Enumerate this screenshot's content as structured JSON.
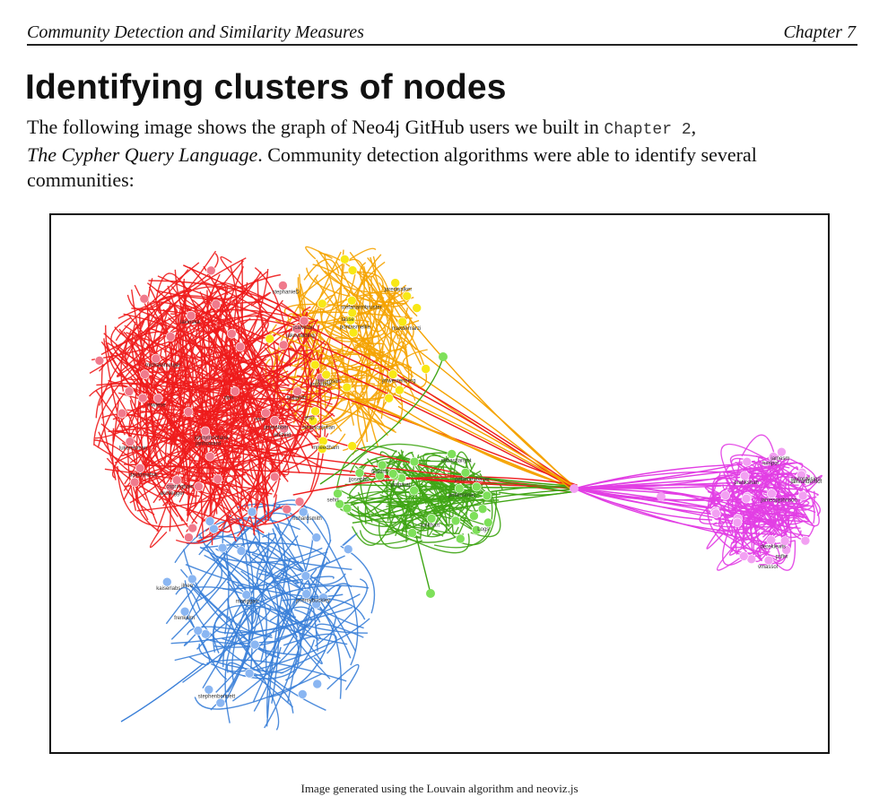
{
  "header": {
    "left": "Community Detection and Similarity Measures",
    "right": "Chapter 7"
  },
  "section": {
    "title": "Identifying clusters of nodes"
  },
  "paragraph": {
    "text_1": "The following image shows the graph of Neo4j GitHub users we built in ",
    "code_ref": "Chapter 2",
    "text_2": ",",
    "book_title": "The Cypher Query Language",
    "text_3": ". Community detection algorithms were able to identify several communities:"
  },
  "figure": {
    "caption": "Image generated using the Louvain algorithm and neoviz.js",
    "colors": {
      "red": "#ee1c1c",
      "orange": "#f5a300",
      "yellow": "#f8e816",
      "green": "#3fa514",
      "blue": "#3a7fd8",
      "magenta": "#e23ee4",
      "pink_node": "#f07a8c",
      "lightblue_node": "#8ab6f2",
      "lightgreen_node": "#7ee05a",
      "lightmagenta_node": "#f2a0f2"
    },
    "labels": {
      "red": [
        "rene",
        "janhoward",
        "lukeredman",
        "jingstone",
        "johnymontana",
        "jimwebber",
        "stephanieD",
        "davidmafsik",
        "whizkid",
        "jcalvinan",
        "lavinska",
        "rbm",
        "jakewalding",
        "twilightfr",
        "mwiese",
        "michaelhunger",
        "akollegger",
        "cspringhain"
      ],
      "orange": [
        "pontusmelke",
        "mneedham",
        "jexp",
        "nlmorrison",
        "maxdemarzi",
        "simpsonjulian",
        "jmwestenberg",
        "lasse",
        "jaredwalker",
        "stefanarmbruster"
      ],
      "green": [
        "Logs",
        "jangaraj",
        "fkakins",
        "sehrt",
        "lockhart",
        "jenkinsmac",
        "sebastianyot",
        "peterneubauer",
        "jjosephs"
      ],
      "blue": [
        "richardsmith",
        "jeremybuckley",
        "kaiserlabs",
        "stephenbennett",
        "moriggan",
        "jlneo",
        "frenkelm"
      ],
      "magenta": [
        "psfiw",
        "vmassol",
        "jamesm",
        "taylordesign",
        "pratikshah",
        "dereklewis",
        "lumpol",
        "jamespjohnson",
        "janvanderhof"
      ]
    }
  }
}
